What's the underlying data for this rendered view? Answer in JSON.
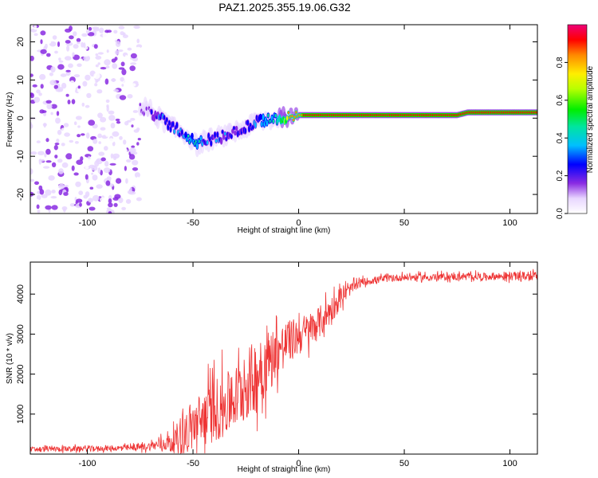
{
  "title": "PAZ1.2025.355.19.06.G32",
  "chart_data": [
    {
      "type": "heatmap",
      "name": "spectrogram",
      "xlabel": "Height of straight line (km)",
      "ylabel": "Frequency (Hz)",
      "xlim": [
        -127,
        113
      ],
      "ylim": [
        -25,
        24.5
      ],
      "x_ticks": [
        -100,
        -50,
        0,
        50,
        100
      ],
      "y_ticks": [
        -20,
        -10,
        0,
        10,
        20
      ],
      "colorbar_label": "Normalized spectral amplitude",
      "colorbar_ticks": [
        0.0,
        0.2,
        0.4,
        0.6,
        0.8
      ],
      "colorbar_range": [
        0,
        1
      ],
      "ridge": {
        "description": "dominant frequency vs height",
        "x": [
          -72,
          -67,
          -62,
          -57,
          -52,
          -48,
          -45,
          -40,
          -35,
          -30,
          -25,
          -20,
          -15,
          -10,
          -5,
          0,
          5,
          10,
          20,
          40,
          60,
          75,
          80,
          100,
          113
        ],
        "freq": [
          2.5,
          0.5,
          -1.5,
          -3,
          -5,
          -7,
          -6,
          -5.5,
          -4.5,
          -3.5,
          -2.5,
          -1,
          -0.5,
          0,
          0.5,
          0.8,
          0.8,
          0.8,
          0.8,
          0.8,
          0.8,
          0.8,
          1.5,
          1.5,
          1.5
        ],
        "amplitude": [
          0.2,
          0.35,
          0.35,
          0.4,
          0.45,
          0.5,
          0.4,
          0.35,
          0.35,
          0.3,
          0.3,
          0.4,
          0.5,
          0.6,
          0.85,
          0.9,
          0.95,
          0.95,
          0.95,
          0.95,
          0.95,
          0.95,
          0.95,
          0.95,
          0.95
        ]
      },
      "noise_region": {
        "x_range": [
          -127,
          -75
        ],
        "freq_range": [
          -25,
          24.5
        ],
        "amplitude_range": [
          0.05,
          0.2
        ]
      }
    },
    {
      "type": "line",
      "name": "snr",
      "xlabel": "Height of straight line (km)",
      "ylabel": "SNR (10 * v/v)",
      "xlim": [
        -127,
        113
      ],
      "ylim": [
        0,
        4800
      ],
      "x_ticks": [
        -100,
        -50,
        0,
        50,
        100
      ],
      "y_ticks": [
        1000,
        2000,
        3000,
        4000
      ],
      "color": "#ee3333",
      "envelope": {
        "x": [
          -127,
          -80,
          -70,
          -60,
          -55,
          -50,
          -45,
          -40,
          -35,
          -30,
          -25,
          -20,
          -15,
          -10,
          -5,
          0,
          5,
          10,
          15,
          20,
          25,
          30,
          40,
          50,
          60,
          70,
          80,
          90,
          100,
          113
        ],
        "mean": [
          120,
          150,
          200,
          300,
          500,
          700,
          900,
          1100,
          1200,
          1400,
          1700,
          2000,
          2300,
          2600,
          2800,
          2950,
          3100,
          3300,
          3600,
          3900,
          4150,
          4300,
          4380,
          4420,
          4420,
          4430,
          4440,
          4440,
          4450,
          4450
        ],
        "spread": [
          70,
          80,
          120,
          250,
          600,
          700,
          800,
          900,
          900,
          900,
          1000,
          1000,
          900,
          700,
          600,
          550,
          500,
          450,
          400,
          300,
          150,
          110,
          100,
          100,
          100,
          100,
          100,
          100,
          120,
          120
        ]
      }
    }
  ],
  "colors": {
    "colormap": [
      "#ffffff",
      "#f1e4ff",
      "#cc99ff",
      "#6600ee",
      "#0000ff",
      "#00ccff",
      "#00ee66",
      "#88ff00",
      "#ffee00",
      "#ff6600",
      "#ff0000",
      "#ee0077"
    ],
    "snr_line": "#ee3333"
  }
}
